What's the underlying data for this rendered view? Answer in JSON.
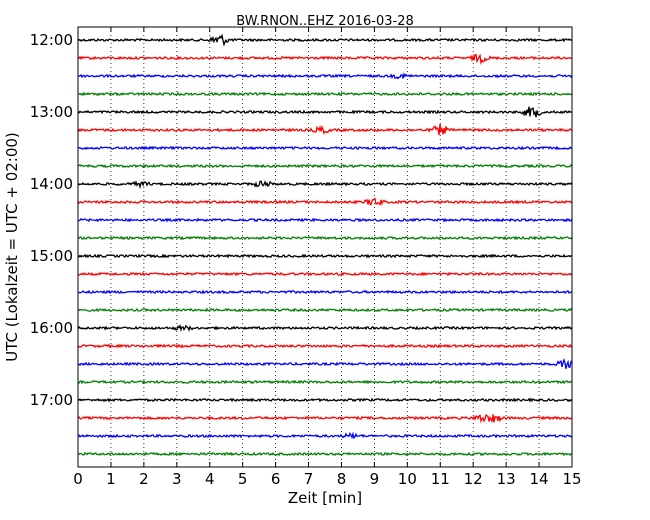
{
  "chart_data": {
    "type": "line",
    "title": "BW.RNON..EHZ 2016-03-28",
    "xlabel": "Zeit  [min]",
    "ylabel": "UTC (Lokalzeit = UTC + 02:00)",
    "xlim": [
      0,
      15
    ],
    "x_ticks": [
      0,
      1,
      2,
      3,
      4,
      5,
      6,
      7,
      8,
      9,
      10,
      11,
      12,
      13,
      14,
      15
    ],
    "x_tick_labels": [
      "0",
      "1",
      "2",
      "3",
      "4",
      "5",
      "6",
      "7",
      "8",
      "9",
      "10",
      "11",
      "12",
      "13",
      "14",
      "15"
    ],
    "y_tick_labels": [
      "12:00",
      "13:00",
      "14:00",
      "15:00",
      "16:00",
      "17:00"
    ],
    "vertical_grid": "dotted",
    "trace_colors": [
      "#000000",
      "#ff0000",
      "#0000ff",
      "#008000"
    ],
    "traces": [
      {
        "start": "12:00",
        "events": [
          {
            "minute": 4.3,
            "amplitude": 6
          }
        ]
      },
      {
        "start": "12:15",
        "events": [
          {
            "minute": 12.2,
            "amplitude": 4
          }
        ]
      },
      {
        "start": "12:30",
        "events": [
          {
            "minute": 9.8,
            "amplitude": 2
          }
        ]
      },
      {
        "start": "12:45",
        "events": []
      },
      {
        "start": "13:00",
        "events": [
          {
            "minute": 13.8,
            "amplitude": 6
          }
        ]
      },
      {
        "start": "13:15",
        "events": [
          {
            "minute": 7.4,
            "amplitude": 3
          },
          {
            "minute": 11.0,
            "amplitude": 5
          }
        ]
      },
      {
        "start": "13:30",
        "events": []
      },
      {
        "start": "13:45",
        "events": []
      },
      {
        "start": "14:00",
        "events": [
          {
            "minute": 5.6,
            "amplitude": 3
          },
          {
            "minute": 1.9,
            "amplitude": 2
          }
        ]
      },
      {
        "start": "14:15",
        "events": [
          {
            "minute": 9.0,
            "amplitude": 4
          }
        ]
      },
      {
        "start": "14:30",
        "events": []
      },
      {
        "start": "14:45",
        "events": []
      },
      {
        "start": "15:00",
        "events": []
      },
      {
        "start": "15:15",
        "events": []
      },
      {
        "start": "15:30",
        "events": []
      },
      {
        "start": "15:45",
        "events": []
      },
      {
        "start": "16:00",
        "events": [
          {
            "minute": 3.2,
            "amplitude": 2
          }
        ]
      },
      {
        "start": "16:15",
        "events": []
      },
      {
        "start": "16:30",
        "events": [
          {
            "minute": 14.8,
            "amplitude": 4
          }
        ]
      },
      {
        "start": "16:45",
        "events": []
      },
      {
        "start": "17:00",
        "events": []
      },
      {
        "start": "17:15",
        "events": [
          {
            "minute": 12.3,
            "amplitude": 4
          },
          {
            "minute": 12.6,
            "amplitude": 4
          }
        ]
      },
      {
        "start": "17:30",
        "events": [
          {
            "minute": 8.3,
            "amplitude": 2
          }
        ]
      },
      {
        "start": "17:45",
        "events": []
      }
    ]
  }
}
